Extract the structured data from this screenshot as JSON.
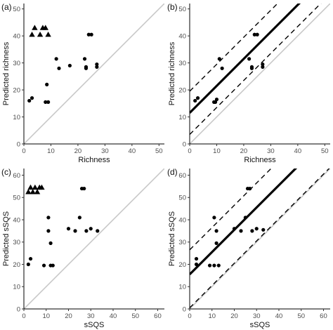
{
  "chart_data": [
    {
      "type": "scatter",
      "panel": "(a)",
      "xlabel": "Richness",
      "ylabel": "Predicted richness",
      "xlim": [
        0,
        52
      ],
      "ylim": [
        0,
        52
      ],
      "xticks": [
        0,
        10,
        20,
        30,
        40,
        50
      ],
      "yticks": [
        0,
        10,
        20,
        30,
        40,
        50
      ],
      "grid": false,
      "series": [
        {
          "marker": "circle",
          "x": [
            2,
            3,
            8,
            9,
            8.5,
            12,
            13,
            17,
            22.5,
            23,
            23,
            24,
            25,
            27,
            27
          ],
          "y": [
            16,
            17,
            15.5,
            15.5,
            22,
            31.5,
            28,
            29,
            31.5,
            28,
            28.5,
            40.5,
            40.5,
            28.5,
            29.5
          ]
        },
        {
          "marker": "triangle",
          "x": [
            3,
            4,
            6,
            7,
            8,
            9
          ],
          "y": [
            40.5,
            43,
            40.5,
            43,
            43,
            40.5
          ]
        }
      ],
      "lines": [
        {
          "kind": "identity",
          "color": "#c8c8c8",
          "slope": 1,
          "intercept": 0
        }
      ]
    },
    {
      "type": "scatter",
      "panel": "(b)",
      "xlabel": "Richness",
      "ylabel": "Predicted richness",
      "xlim": [
        0,
        52
      ],
      "ylim": [
        0,
        52
      ],
      "xticks": [
        0,
        10,
        20,
        30,
        40,
        50
      ],
      "yticks": [
        0,
        10,
        20,
        30,
        40,
        50
      ],
      "grid": false,
      "series": [
        {
          "marker": "circle",
          "x": [
            2,
            3,
            9,
            9.5,
            10,
            11,
            12,
            22,
            23,
            23,
            24,
            25,
            27,
            27
          ],
          "y": [
            16,
            17,
            15.5,
            15.5,
            16.5,
            31.5,
            28,
            31.5,
            28,
            28.5,
            40.5,
            40.5,
            28.5,
            29.5
          ]
        }
      ],
      "lines": [
        {
          "kind": "identity",
          "color": "#c8c8c8",
          "slope": 1,
          "intercept": 0
        },
        {
          "kind": "fit",
          "style": "solid",
          "color": "#000000",
          "slope": 1,
          "intercept": 11.5
        },
        {
          "kind": "upper-bound",
          "style": "dashed",
          "color": "#000000",
          "slope": 1,
          "intercept": 19.5
        },
        {
          "kind": "lower-bound",
          "style": "dashed",
          "color": "#000000",
          "slope": 1,
          "intercept": 3.5
        }
      ]
    },
    {
      "type": "scatter",
      "panel": "(c)",
      "xlabel": "sSQS",
      "ylabel": "Predicted sSQS",
      "xlim": [
        0,
        63
      ],
      "ylim": [
        0,
        63
      ],
      "xticks": [
        0,
        10,
        20,
        30,
        40,
        50,
        60
      ],
      "yticks": [
        0,
        10,
        20,
        30,
        40,
        50,
        60
      ],
      "grid": false,
      "series": [
        {
          "marker": "circle",
          "x": [
            2,
            3,
            9,
            11,
            11,
            12,
            12,
            13,
            20,
            23,
            25,
            26,
            27,
            28,
            30,
            33
          ],
          "y": [
            20,
            22.5,
            19.5,
            41,
            35,
            29.5,
            19.5,
            19.5,
            36,
            35,
            41,
            54,
            54,
            35,
            36,
            35
          ]
        },
        {
          "marker": "triangle",
          "x": [
            2,
            3,
            4,
            5,
            6,
            7,
            8
          ],
          "y": [
            52.5,
            54.5,
            52.5,
            54.5,
            52.5,
            54.5,
            54.5
          ]
        }
      ],
      "lines": [
        {
          "kind": "identity",
          "color": "#c8c8c8",
          "slope": 1,
          "intercept": 0
        }
      ]
    },
    {
      "type": "scatter",
      "panel": "(d)",
      "xlabel": "sSQS",
      "ylabel": "Predicted sSQS",
      "xlim": [
        0,
        63
      ],
      "ylim": [
        0,
        63
      ],
      "xticks": [
        0,
        10,
        20,
        30,
        40,
        50,
        60
      ],
      "yticks": [
        0,
        10,
        20,
        30,
        40,
        50,
        60
      ],
      "grid": false,
      "series": [
        {
          "marker": "circle",
          "x": [
            3,
            9,
            11,
            12,
            12,
            13,
            20,
            23,
            25,
            26,
            27,
            28,
            30,
            33,
            11,
            3
          ],
          "y": [
            22.5,
            19.5,
            41,
            35,
            29.5,
            19.5,
            36,
            35,
            41,
            54,
            54,
            35,
            36,
            35.5,
            19.5,
            20
          ]
        }
      ],
      "lines": [
        {
          "kind": "identity",
          "color": "#c8c8c8",
          "slope": 1,
          "intercept": 0
        },
        {
          "kind": "fit",
          "style": "solid",
          "color": "#000000",
          "slope": 1,
          "intercept": 15.5
        },
        {
          "kind": "upper-bound",
          "style": "dashed",
          "color": "#000000",
          "slope": 1,
          "intercept": 26.5
        },
        {
          "kind": "lower-bound",
          "style": "dashed",
          "color": "#000000",
          "slope": 1,
          "intercept": 0.5
        }
      ]
    }
  ]
}
